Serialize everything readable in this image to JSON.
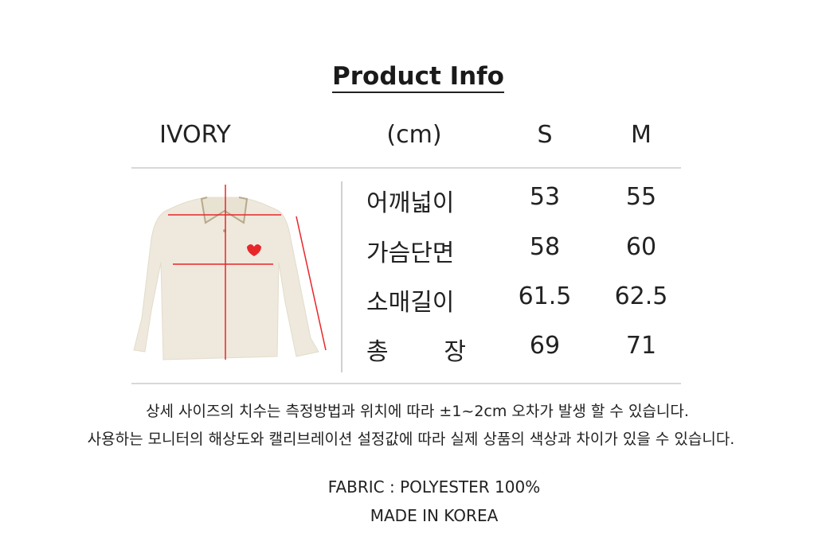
{
  "title": "Product Info",
  "header": {
    "color": "IVORY",
    "unit": "(cm)",
    "sizes": [
      "S",
      "M"
    ]
  },
  "rows": [
    {
      "label": "어깨넓이",
      "S": "53",
      "M": "55"
    },
    {
      "label": "가슴단면",
      "S": "58",
      "M": "60"
    },
    {
      "label": "소매길이",
      "S": "61.5",
      "M": "62.5"
    },
    {
      "label": "총 장",
      "S": "69",
      "M": "71"
    }
  ],
  "notes": [
    "상세 사이즈의 치수는 측정방법과 위치에 따라 ±1~2cm 오차가 발생 할 수 있습니다.",
    "사용하는 모니터의 해상도와 캘리브레이션 설정값에 따라 실제 상품의 색상과 차이가 있을 수 있습니다."
  ],
  "fabric": "FABRIC : POLYESTER 100%",
  "origin": "MADE IN KOREA",
  "colors": {
    "garment": "#eee9dc",
    "measure_line": "#e8262a",
    "divider": "#d8d8d8"
  }
}
